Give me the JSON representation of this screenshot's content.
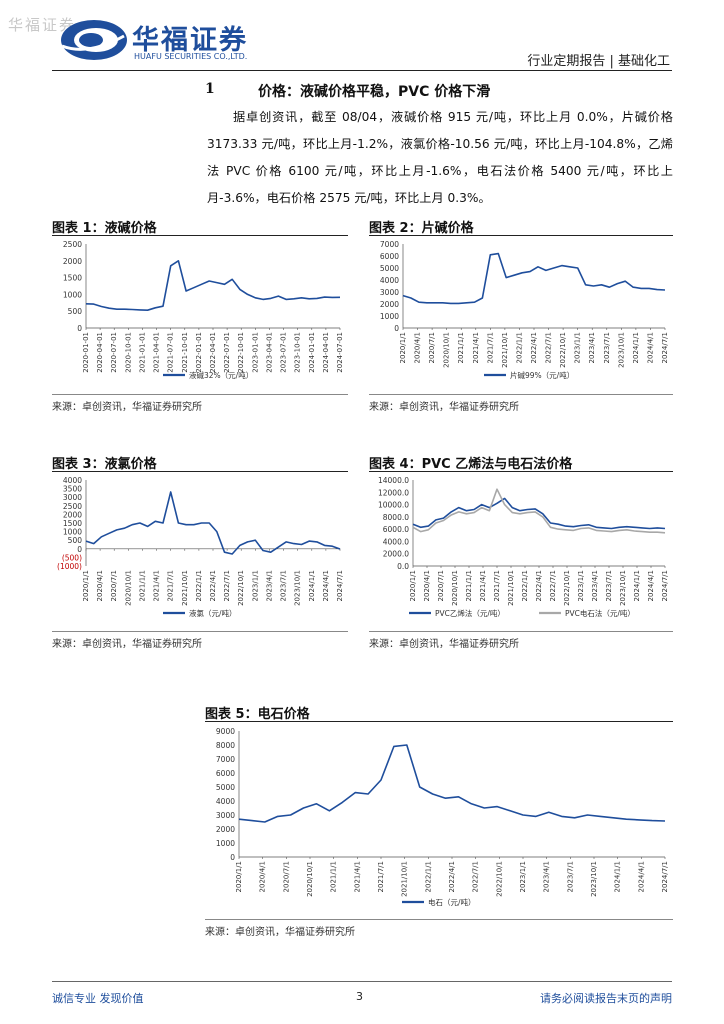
{
  "header": {
    "watermark": "华福证券",
    "logo_cn": "华福证券",
    "logo_en": "HUAFU SECURITIES CO.,LTD.",
    "right": "行业定期报告 | 基础化工"
  },
  "section": {
    "number": "1",
    "title": "价格：液碱价格平稳，PVC 价格下滑",
    "paragraph": "据卓创资讯，截至 08/04，液碱价格 915 元/吨，环比上月 0.0%，片碱价格 3173.33 元/吨，环比上月-1.2%，液氯价格-10.56 元/吨，环比上月-104.8%，乙烯法 PVC 价格 6100 元/吨，环比上月-1.6%，电石法价格 5400 元/吨，环比上月-3.6%，电石价格 2575 元/吨，环比上月 0.3%。"
  },
  "figures": [
    {
      "title": "图表 1：液碱价格",
      "source": "来源：卓创资讯，华福证券研究所"
    },
    {
      "title": "图表 2：片碱价格",
      "source": "来源：卓创资讯，华福证券研究所"
    },
    {
      "title": "图表 3：液氯价格",
      "source": "来源：卓创资讯，华福证券研究所"
    },
    {
      "title": "图表 4：PVC 乙烯法与电石法价格",
      "source": "来源：卓创资讯，华福证券研究所"
    },
    {
      "title": "图表 5：电石价格",
      "source": "来源：卓创资讯，华福证券研究所"
    }
  ],
  "chart_data": [
    {
      "type": "line",
      "ylim": [
        0,
        2500
      ],
      "yticks": [
        "0",
        "500",
        "1000",
        "1500",
        "2000",
        "2500"
      ],
      "xticks": [
        "2020-01-01",
        "2020-04-01",
        "2020-07-01",
        "2020-10-01",
        "2021-01-01",
        "2021-04-01",
        "2021-07-01",
        "2021-10-01",
        "2022-01-01",
        "2022-04-01",
        "2022-07-01",
        "2022-10-01",
        "2023-01-01",
        "2023-04-01",
        "2023-07-01",
        "2023-10-01",
        "2024-01-01",
        "2024-04-01",
        "2024-07-01"
      ],
      "series": [
        {
          "name": "液碱32%（元/吨）",
          "color": "#1f4e9c",
          "values": [
            720,
            710,
            640,
            590,
            560,
            560,
            550,
            540,
            530,
            600,
            650,
            1850,
            2000,
            1100,
            1200,
            1300,
            1400,
            1350,
            1300,
            1450,
            1150,
            1000,
            900,
            850,
            880,
            950,
            850,
            870,
            900,
            870,
            880,
            920,
            910,
            915
          ]
        }
      ]
    },
    {
      "type": "line",
      "ylim": [
        0,
        7000
      ],
      "yticks": [
        "0",
        "1000",
        "2000",
        "3000",
        "4000",
        "5000",
        "6000",
        "7000"
      ],
      "xticks": [
        "2020/1/1",
        "2020/4/1",
        "2020/7/1",
        "2020/10/1",
        "2021/1/1",
        "2021/4/1",
        "2021/7/1",
        "2021/10/1",
        "2022/1/1",
        "2022/4/1",
        "2022/7/1",
        "2022/10/1",
        "2023/1/1",
        "2023/4/1",
        "2023/7/1",
        "2023/10/1",
        "2024/1/1",
        "2024/4/1",
        "2024/7/1"
      ],
      "series": [
        {
          "name": "片碱99%（元/吨）",
          "color": "#1f4e9c",
          "values": [
            2700,
            2500,
            2150,
            2100,
            2100,
            2100,
            2050,
            2050,
            2100,
            2150,
            2500,
            6100,
            6200,
            4200,
            4400,
            4600,
            4700,
            5100,
            4800,
            5000,
            5200,
            5100,
            5000,
            3600,
            3500,
            3600,
            3400,
            3700,
            3900,
            3400,
            3300,
            3300,
            3200,
            3170
          ]
        }
      ]
    },
    {
      "type": "line",
      "ylim": [
        -1000,
        4000
      ],
      "yticks": [
        "(1000)",
        "(500)",
        "0",
        "500",
        "1000",
        "1500",
        "2000",
        "2500",
        "3000",
        "3500",
        "4000"
      ],
      "xticks": [
        "2020/1/1",
        "2020/4/1",
        "2020/7/1",
        "2020/10/1",
        "2021/1/1",
        "2021/4/1",
        "2021/7/1",
        "2021/10/1",
        "2022/1/1",
        "2022/4/1",
        "2022/7/1",
        "2022/10/1",
        "2023/1/1",
        "2023/4/1",
        "2023/7/1",
        "2023/10/1",
        "2024/1/1",
        "2024/4/1",
        "2024/7/1"
      ],
      "series": [
        {
          "name": "液氯（元/吨）",
          "color": "#1f4e9c",
          "values": [
            450,
            300,
            700,
            900,
            1100,
            1200,
            1400,
            1500,
            1300,
            1600,
            1500,
            3300,
            1500,
            1400,
            1400,
            1500,
            1500,
            1000,
            -200,
            -300,
            200,
            400,
            500,
            -100,
            -200,
            100,
            400,
            300,
            250,
            450,
            400,
            200,
            150,
            -11
          ]
        }
      ]
    },
    {
      "type": "line",
      "ylim": [
        0,
        14000
      ],
      "yticks": [
        "0.0",
        "2000.0",
        "4000.0",
        "6000.0",
        "8000.0",
        "10000.0",
        "12000.0",
        "14000.0"
      ],
      "xticks": [
        "2020/1/1",
        "2020/4/1",
        "2020/7/1",
        "2020/10/1",
        "2021/1/1",
        "2021/4/1",
        "2021/7/1",
        "2021/10/1",
        "2022/1/1",
        "2022/4/1",
        "2022/7/1",
        "2022/10/1",
        "2023/1/1",
        "2023/4/1",
        "2023/7/1",
        "2023/10/1",
        "2024/1/1",
        "2024/4/1",
        "2024/7/1"
      ],
      "series": [
        {
          "name": "PVC乙烯法（元/吨）",
          "color": "#1f4e9c",
          "values": [
            6800,
            6300,
            6500,
            7500,
            7800,
            8800,
            9500,
            9000,
            9200,
            10000,
            9500,
            10200,
            11000,
            9500,
            9000,
            9200,
            9300,
            8500,
            7000,
            6800,
            6500,
            6400,
            6600,
            6700,
            6300,
            6200,
            6100,
            6300,
            6400,
            6300,
            6200,
            6100,
            6200,
            6100
          ]
        },
        {
          "name": "PVC电石法（元/吨）",
          "color": "#a8a8a8",
          "values": [
            6300,
            5600,
            5900,
            7000,
            7400,
            8300,
            8800,
            8500,
            8700,
            9500,
            9000,
            12500,
            10000,
            8700,
            8500,
            8700,
            8800,
            8000,
            6300,
            6000,
            5900,
            5800,
            6100,
            6200,
            5800,
            5700,
            5600,
            5800,
            5900,
            5700,
            5600,
            5500,
            5500,
            5400
          ]
        }
      ]
    },
    {
      "type": "line",
      "ylim": [
        0,
        9000
      ],
      "yticks": [
        "0",
        "1000",
        "2000",
        "3000",
        "4000",
        "5000",
        "6000",
        "7000",
        "8000",
        "9000"
      ],
      "xticks": [
        "2020/1/1",
        "2020/4/1",
        "2020/7/1",
        "2020/10/1",
        "2021/1/1",
        "2021/4/1",
        "2021/7/1",
        "2021/10/1",
        "2022/1/1",
        "2022/4/1",
        "2022/7/1",
        "2022/10/1",
        "2023/1/1",
        "2023/4/1",
        "2023/7/1",
        "2023/10/1",
        "2024/1/1",
        "2024/4/1",
        "2024/7/1"
      ],
      "series": [
        {
          "name": "电石（元/吨）",
          "color": "#1f4e9c",
          "values": [
            2700,
            2600,
            2500,
            2900,
            3000,
            3500,
            3800,
            3300,
            3900,
            4600,
            4500,
            5500,
            7900,
            8000,
            5000,
            4500,
            4200,
            4300,
            3800,
            3500,
            3600,
            3300,
            3000,
            2900,
            3200,
            2900,
            2800,
            3000,
            2900,
            2800,
            2700,
            2650,
            2600,
            2575
          ]
        }
      ]
    }
  ],
  "footer": {
    "left": "诚信专业  发现价值",
    "page": "3",
    "right": "请务必阅读报告末页的声明"
  }
}
